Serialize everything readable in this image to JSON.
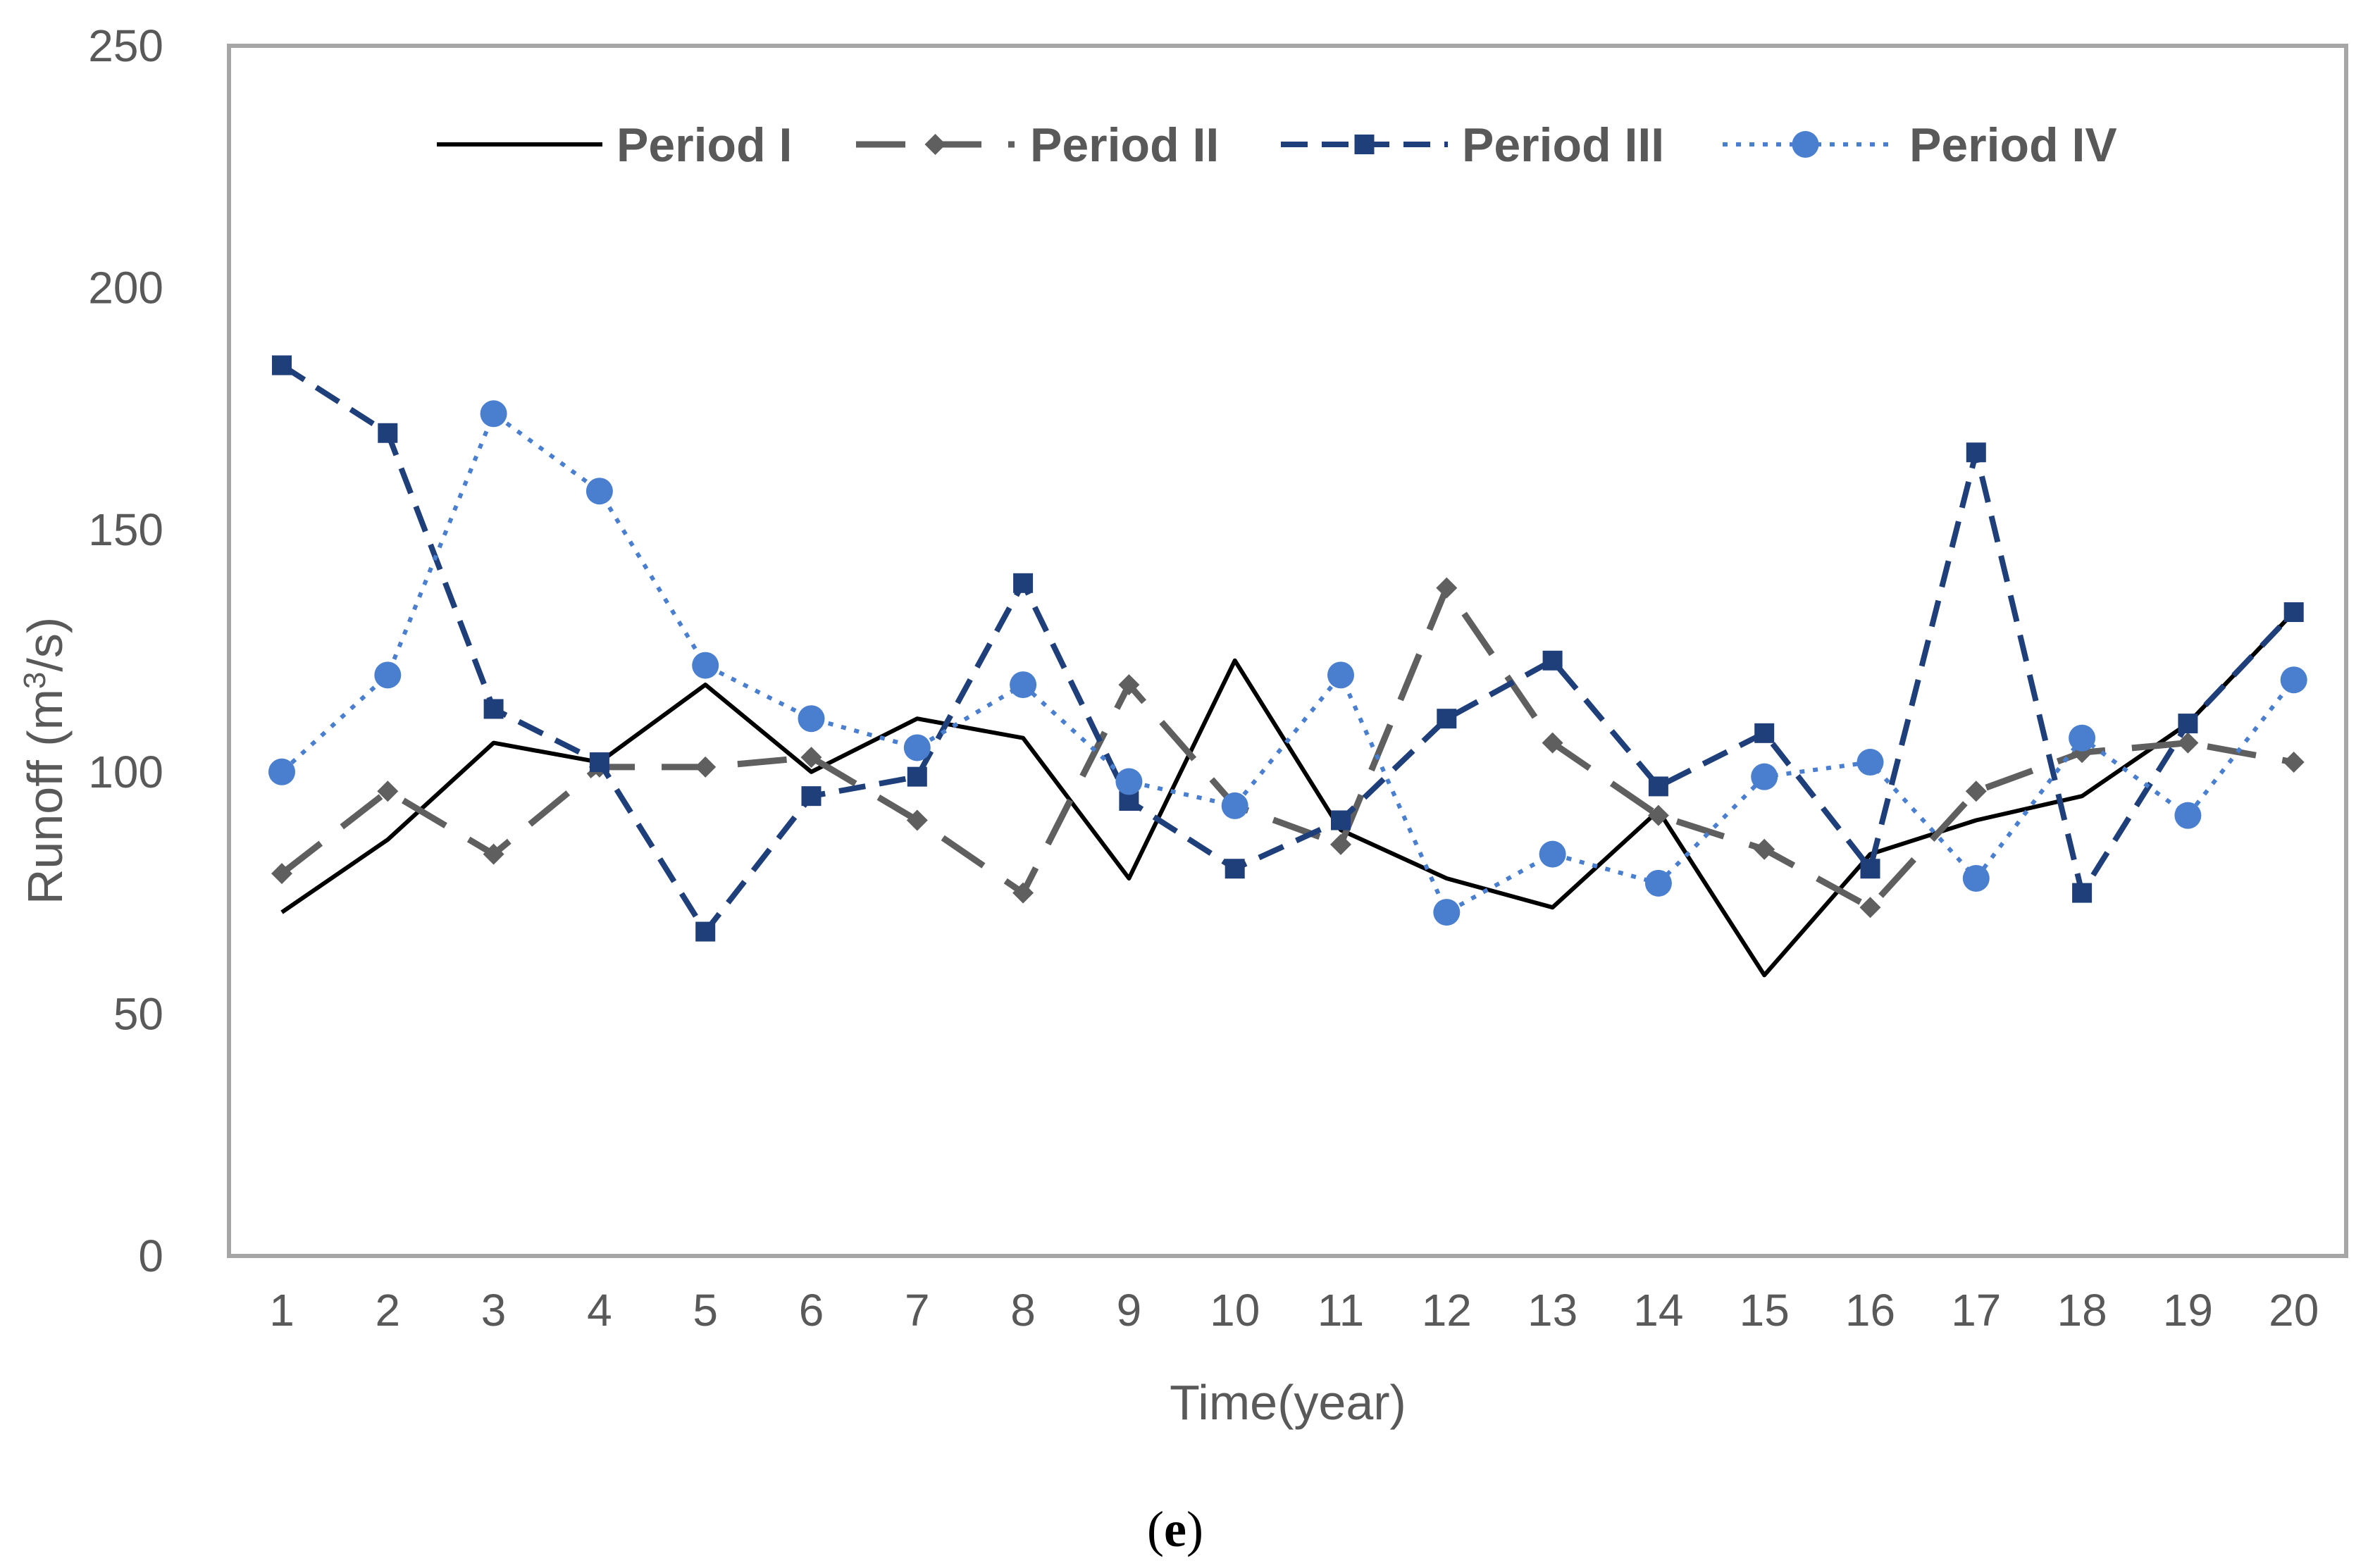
{
  "chart_data": {
    "type": "line",
    "title": "",
    "xlabel": "Time(year)",
    "ylabel_main": "Runoff (m",
    "ylabel_sup": "3",
    "ylabel_end": "/s)",
    "ylim": [
      0,
      250
    ],
    "yticks": [
      0,
      50,
      100,
      150,
      200,
      250
    ],
    "categories": [
      "1",
      "2",
      "3",
      "4",
      "5",
      "6",
      "7",
      "8",
      "9",
      "10",
      "11",
      "12",
      "13",
      "14",
      "15",
      "16",
      "17",
      "18",
      "19",
      "20"
    ],
    "grid": false,
    "legend_position": "top",
    "caption_open": "(",
    "caption_letter": "e",
    "caption_close": ")",
    "series": [
      {
        "name": "Period I",
        "color": "#000000",
        "marker": "none",
        "dash": "solid",
        "values": [
          71,
          86,
          106,
          102,
          118,
          100,
          111,
          107,
          78,
          123,
          88,
          78,
          72,
          92,
          58,
          83,
          90,
          95,
          110,
          133
        ]
      },
      {
        "name": "Period II",
        "color": "#5f5f5f",
        "marker": "diamond",
        "dash": "longdash",
        "values": [
          79,
          96,
          83,
          101,
          101,
          103,
          90,
          75,
          118,
          93,
          85,
          138,
          106,
          91,
          84,
          72,
          96,
          104,
          106,
          102
        ]
      },
      {
        "name": "Period III",
        "color": "#1f3f7a",
        "marker": "square",
        "dash": "dash",
        "values": [
          184,
          170,
          113,
          102,
          67,
          95,
          99,
          139,
          94,
          80,
          90,
          111,
          123,
          97,
          108,
          80,
          166,
          75,
          110,
          133
        ]
      },
      {
        "name": "Period IV",
        "color": "#4a7fd0",
        "marker": "circle",
        "dash": "dot",
        "values": [
          100,
          120,
          174,
          158,
          122,
          111,
          105,
          118,
          98,
          93,
          120,
          71,
          83,
          77,
          99,
          102,
          78,
          107,
          91,
          119
        ]
      }
    ]
  }
}
